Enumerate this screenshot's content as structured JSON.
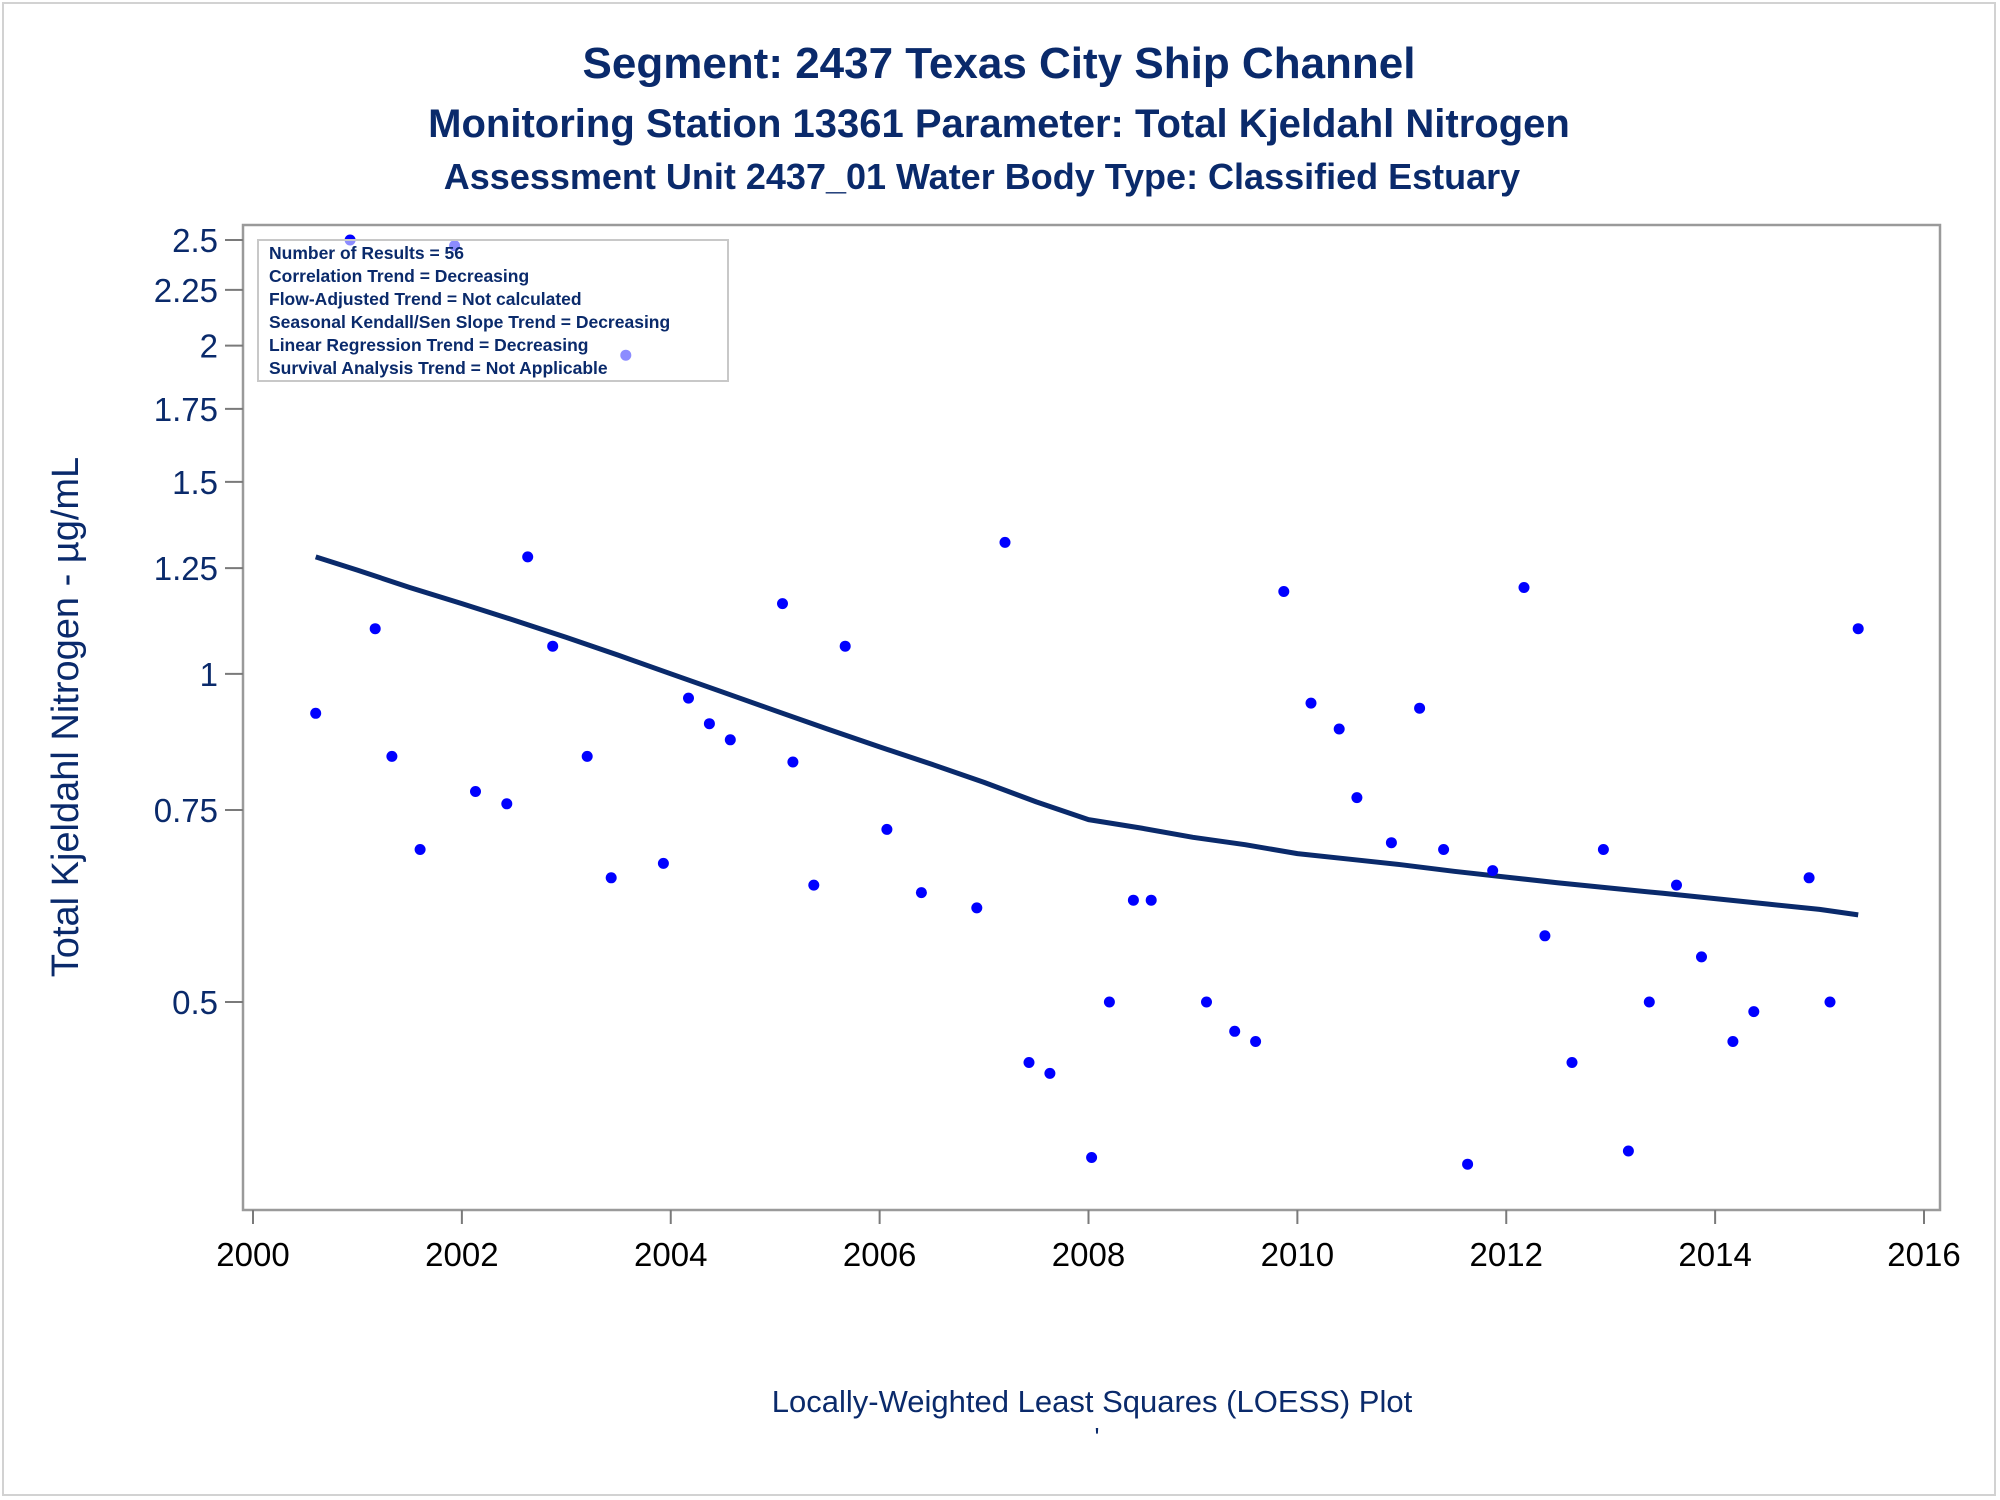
{
  "chart_data": {
    "type": "scatter",
    "title": "Segment: 2437  Texas City Ship Channel",
    "subtitle": "Monitoring Station 13361 Parameter: Total Kjeldahl Nitrogen",
    "subtitle2": "Assessment Unit 2437_01   Water Body Type: Classified Estuary",
    "xlabel": "Locally-Weighted Least Squares (LOESS) Plot",
    "footnote": "'",
    "ylabel": "Total Kjeldahl Nitrogen -  µg/mL",
    "y_scale": "log",
    "xlim": [
      2000,
      2016
    ],
    "ylim": [
      0.3,
      2.55
    ],
    "x_ticks": [
      2000,
      2002,
      2004,
      2006,
      2008,
      2010,
      2012,
      2014,
      2016
    ],
    "y_ticks": [
      0.5,
      0.75,
      1,
      1.25,
      1.5,
      1.75,
      2,
      2.25,
      2.5
    ],
    "y_tick_labels": [
      "0.5",
      "0.75",
      "1",
      "1.25",
      "1.5",
      "1.75",
      "2",
      "2.25",
      "2.5"
    ],
    "grid": false,
    "colors": {
      "points": "#0000ff",
      "loess": "#0a2a6b",
      "text": "#0a2a6b"
    },
    "stats_box": {
      "placement": "top-left",
      "lines": [
        "Number of Results = 56",
        "Correlation Trend = Decreasing",
        "Flow-Adjusted Trend = Not calculated",
        "Seasonal Kendall/Sen Slope Trend = Decreasing",
        "Linear Regression Trend = Decreasing",
        "Survival Analysis Trend = Not Applicable"
      ]
    },
    "series": [
      {
        "kind": "points",
        "x": [
          2000.6,
          2000.93,
          2001.17,
          2001.33,
          2001.6,
          2001.93,
          2002.13,
          2002.43,
          2002.63,
          2002.87,
          2003.2,
          2003.43,
          2003.57,
          2003.93,
          2004.17,
          2004.37,
          2004.57,
          2005.07,
          2005.17,
          2005.37,
          2005.67,
          2006.07,
          2006.4,
          2006.93,
          2007.2,
          2007.43,
          2007.63,
          2008.03,
          2008.2,
          2008.43,
          2008.6,
          2009.13,
          2009.4,
          2009.6,
          2009.87,
          2010.13,
          2010.4,
          2010.57,
          2010.9,
          2011.17,
          2011.4,
          2011.63,
          2011.87,
          2012.17,
          2012.37,
          2012.63,
          2012.93,
          2013.17,
          2013.37,
          2013.63,
          2013.87,
          2014.17,
          2014.37,
          2014.9,
          2015.1,
          2015.37
        ],
        "y": [
          0.92,
          2.5,
          1.1,
          0.84,
          0.69,
          2.47,
          0.78,
          0.76,
          1.28,
          1.06,
          0.84,
          0.65,
          1.96,
          0.67,
          0.95,
          0.9,
          0.87,
          1.16,
          0.83,
          0.64,
          1.06,
          0.72,
          0.63,
          0.61,
          1.32,
          0.44,
          0.43,
          0.36,
          0.5,
          0.62,
          0.62,
          0.5,
          0.47,
          0.46,
          1.19,
          0.94,
          0.89,
          0.77,
          0.7,
          0.93,
          0.69,
          0.355,
          0.66,
          1.2,
          0.575,
          0.44,
          0.69,
          0.365,
          0.5,
          0.64,
          0.55,
          0.46,
          0.49,
          0.65,
          0.5,
          1.1
        ]
      },
      {
        "kind": "line",
        "x": [
          2000.6,
          2001.0,
          2001.5,
          2002.0,
          2002.5,
          2003.0,
          2003.5,
          2004.0,
          2004.5,
          2005.0,
          2005.5,
          2006.0,
          2006.5,
          2007.0,
          2007.5,
          2008.0,
          2008.5,
          2009.0,
          2009.5,
          2010.0,
          2010.5,
          2011.0,
          2011.5,
          2012.0,
          2012.5,
          2013.0,
          2013.5,
          2014.0,
          2014.5,
          2015.0,
          2015.37
        ],
        "y": [
          1.28,
          1.245,
          1.2,
          1.16,
          1.12,
          1.08,
          1.04,
          1.0,
          0.962,
          0.925,
          0.89,
          0.857,
          0.826,
          0.795,
          0.763,
          0.735,
          0.722,
          0.708,
          0.697,
          0.684,
          0.676,
          0.668,
          0.659,
          0.651,
          0.643,
          0.636,
          0.629,
          0.622,
          0.615,
          0.608,
          0.601
        ]
      }
    ]
  }
}
